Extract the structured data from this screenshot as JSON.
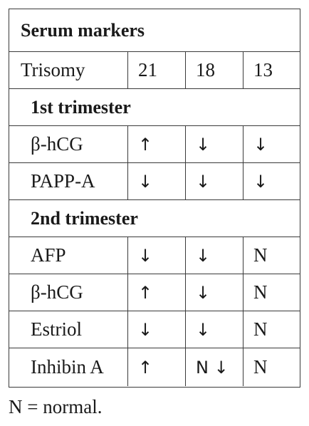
{
  "table": {
    "title": "Serum markers",
    "header": {
      "label": "Trisomy",
      "cols": [
        "21",
        "18",
        "13"
      ]
    },
    "section1": {
      "title": "1st trimester",
      "rows": [
        {
          "marker": "β-hCG",
          "t21": "↑",
          "t18": "↓",
          "t13": "↓"
        },
        {
          "marker": "PAPP-A",
          "t21": "↓",
          "t18": "↓",
          "t13": "↓"
        }
      ]
    },
    "section2": {
      "title": "2nd trimester",
      "rows": [
        {
          "marker": "AFP",
          "t21": "↓",
          "t18": "↓",
          "t13": "N"
        },
        {
          "marker": "β-hCG",
          "t21": "↑",
          "t18": "↓",
          "t13": "N"
        },
        {
          "marker": "Estriol",
          "t21": "↓",
          "t18": "↓",
          "t13": "N"
        },
        {
          "marker": "Inhibin A",
          "t21": "↑",
          "t18": "N ↓",
          "t13": "N"
        }
      ]
    }
  },
  "footnote": "N = normal."
}
